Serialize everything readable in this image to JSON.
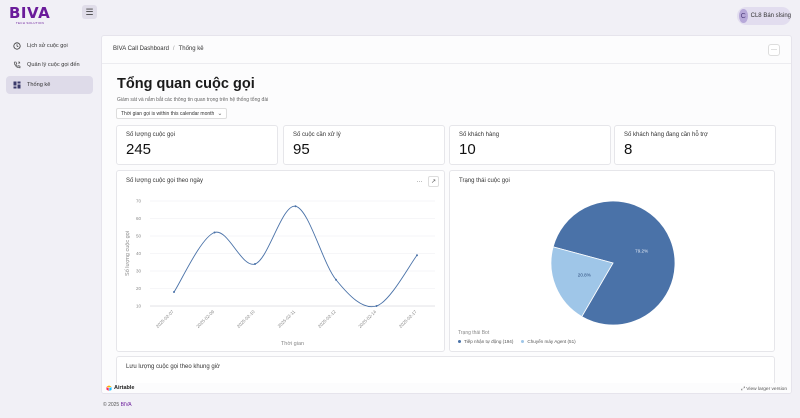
{
  "brand": {
    "name": "BIVA",
    "tagline": "TECH SOLUTION",
    "primary_color": "#6a1b9a"
  },
  "header": {
    "menu_icon": "hamburger-icon",
    "user": {
      "initial": "C",
      "name": "CL8 Bán sỉsing"
    }
  },
  "sidebar": {
    "items": [
      {
        "label": "Lịch sử cuộc gọi",
        "icon": "clock-icon",
        "active": false
      },
      {
        "label": "Quản lý cuộc gọi đến",
        "icon": "phone-incoming-icon",
        "active": false
      },
      {
        "label": "Thống kê",
        "icon": "dashboard-grid-icon",
        "active": true
      }
    ]
  },
  "breadcrumb": {
    "parent": "BIVA Call Dashboard",
    "separator": "/",
    "current": "Thống kê"
  },
  "page": {
    "title": "Tổng quan cuộc gọi",
    "subtitle": "Giám sát và nắm bắt các thông tin quan trọng trên hệ thống tổng đài",
    "filter": "Thời gian gọi is within this calendar month"
  },
  "kpis": [
    {
      "label": "Số lượng cuộc gọi",
      "value": "245"
    },
    {
      "label": "Số cuộc cần xử lý",
      "value": "95"
    },
    {
      "label": "Số khách hàng",
      "value": "10"
    },
    {
      "label": "Số khách hàng đang cần hỗ trợ",
      "value": "8"
    }
  ],
  "line_card": {
    "title": "Số lượng cuộc gọi theo ngày",
    "more": "···",
    "expand": "↗"
  },
  "pie_card": {
    "title": "Trạng thái cuộc gọi",
    "legend_title": "Trạng thái Bot"
  },
  "bottom_card": {
    "title": "Lưu lượng cuộc gọi theo khung giờ"
  },
  "airtable": {
    "label": "Airtable",
    "view_larger": "View larger version"
  },
  "footer": {
    "prefix": "© 2025",
    "brand": "BIVA"
  },
  "chart_data": [
    {
      "type": "line",
      "title": "Số lượng cuộc gọi theo ngày",
      "xlabel": "Thời gian",
      "ylabel": "Số lượng cuộc gọi",
      "ylim": [
        10,
        70
      ],
      "yticks": [
        10,
        20,
        30,
        40,
        50,
        60,
        70
      ],
      "categories": [
        "2025-02-07",
        "2025-02-09",
        "2025-02-10",
        "2025-02-11",
        "2025-02-12",
        "2025-02-14",
        "2025-02-17"
      ],
      "values": [
        18,
        52,
        34,
        67,
        25,
        10,
        39
      ],
      "color": "#4a72a8",
      "grid": true
    },
    {
      "type": "pie",
      "title": "Trạng thái cuộc gọi",
      "legend_title": "Trạng thái Bot",
      "slices": [
        {
          "name": "Tiếp nhận tự động",
          "count": 194,
          "percent": 79.2,
          "label": "79.2%",
          "legend": "Tiếp nhận tự động (194)",
          "color": "#4a72a8"
        },
        {
          "name": "Chuyển máy Agent",
          "count": 51,
          "percent": 20.8,
          "label": "20.8%",
          "legend": "Chuyển máy Agent (51)",
          "color": "#9fc6e8"
        }
      ],
      "legend_position": "bottom-left"
    }
  ]
}
